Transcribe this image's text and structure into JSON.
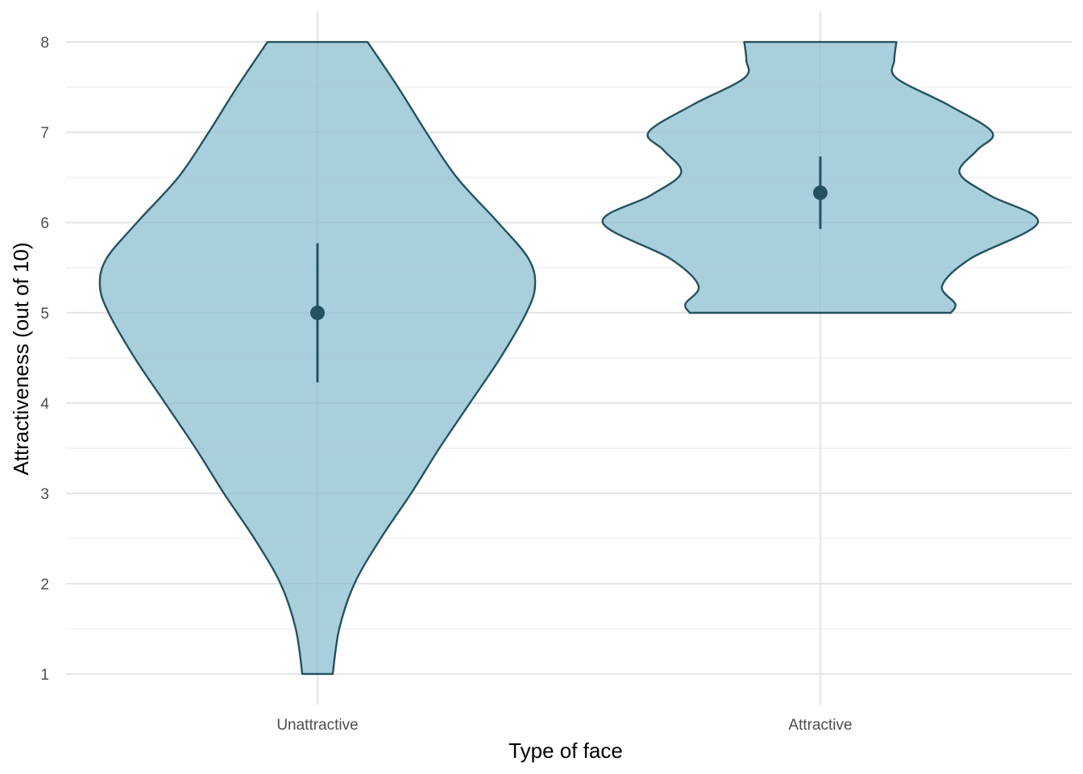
{
  "chart_data": {
    "type": "violin",
    "title": "",
    "xlabel": "Type of face",
    "ylabel": "Attractiveness (out of 10)",
    "ylim": [
      0.66,
      8.34
    ],
    "y_ticks": [
      1,
      2,
      3,
      4,
      5,
      6,
      7,
      8
    ],
    "grid": true,
    "legend": "none",
    "colors": {
      "fill": "#8dbfd0",
      "stroke": "#24525f",
      "grid": "#e6e6e6"
    },
    "categories": [
      "Unattractive",
      "Attractive"
    ],
    "groups": [
      {
        "category": "Unattractive",
        "mean": 5.0,
        "ci": [
          4.23,
          5.77
        ],
        "range": [
          1,
          8
        ],
        "density_profile": [
          {
            "y": 1.0,
            "w": 0.07
          },
          {
            "y": 1.5,
            "w": 0.1
          },
          {
            "y": 2.0,
            "w": 0.17
          },
          {
            "y": 2.5,
            "w": 0.29
          },
          {
            "y": 3.0,
            "w": 0.43
          },
          {
            "y": 3.5,
            "w": 0.56
          },
          {
            "y": 4.0,
            "w": 0.7
          },
          {
            "y": 4.5,
            "w": 0.84
          },
          {
            "y": 5.0,
            "w": 0.96
          },
          {
            "y": 5.3,
            "w": 1.0
          },
          {
            "y": 5.6,
            "w": 0.97
          },
          {
            "y": 6.0,
            "w": 0.83
          },
          {
            "y": 6.5,
            "w": 0.64
          },
          {
            "y": 7.0,
            "w": 0.5
          },
          {
            "y": 7.5,
            "w": 0.37
          },
          {
            "y": 8.0,
            "w": 0.23
          }
        ]
      },
      {
        "category": "Attractive",
        "mean": 6.33,
        "ci": [
          5.93,
          6.73
        ],
        "range": [
          5,
          8
        ],
        "density_profile": [
          {
            "y": 5.0,
            "w": 0.6
          },
          {
            "y": 5.1,
            "w": 0.62
          },
          {
            "y": 5.3,
            "w": 0.56
          },
          {
            "y": 5.6,
            "w": 0.69
          },
          {
            "y": 6.0,
            "w": 1.0
          },
          {
            "y": 6.3,
            "w": 0.78
          },
          {
            "y": 6.55,
            "w": 0.64
          },
          {
            "y": 6.8,
            "w": 0.72
          },
          {
            "y": 7.0,
            "w": 0.79
          },
          {
            "y": 7.3,
            "w": 0.59
          },
          {
            "y": 7.6,
            "w": 0.35
          },
          {
            "y": 7.8,
            "w": 0.34
          },
          {
            "y": 8.0,
            "w": 0.35
          }
        ]
      }
    ]
  }
}
